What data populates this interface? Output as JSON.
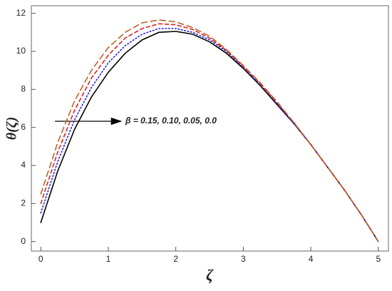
{
  "chart_data": {
    "type": "line",
    "xlabel": "ζ",
    "ylabel": "θ(ζ)",
    "annotation": "β = 0.15, 0.10, 0.05, 0.0",
    "x": [
      0,
      0.25,
      0.5,
      0.75,
      1,
      1.25,
      1.5,
      1.75,
      2,
      2.25,
      2.5,
      2.75,
      3,
      3.25,
      3.5,
      3.75,
      4,
      4.25,
      4.5,
      4.75,
      5
    ],
    "series": [
      {
        "color": "#000000",
        "dash": "solid",
        "values": [
          1.0,
          3.7,
          5.9,
          7.6,
          8.9,
          9.9,
          10.6,
          11.0,
          11.05,
          10.9,
          10.5,
          9.9,
          9.1,
          8.2,
          7.2,
          6.2,
          5.1,
          3.9,
          2.7,
          1.4,
          0
        ]
      },
      {
        "color": "#2020e0",
        "dash": "dotted",
        "values": [
          1.5,
          4.2,
          6.4,
          8.1,
          9.4,
          10.3,
          10.9,
          11.2,
          11.2,
          11.0,
          10.6,
          10.0,
          9.15,
          8.25,
          7.25,
          6.2,
          5.1,
          3.9,
          2.7,
          1.4,
          0
        ]
      },
      {
        "color": "#e02020",
        "dash": "dashed",
        "values": [
          2.0,
          4.7,
          6.9,
          8.6,
          9.8,
          10.7,
          11.2,
          11.45,
          11.4,
          11.15,
          10.7,
          10.05,
          9.2,
          8.3,
          7.3,
          6.25,
          5.1,
          3.9,
          2.7,
          1.4,
          0
        ]
      },
      {
        "color": "#b5652a",
        "dash": "longdash",
        "values": [
          2.5,
          5.2,
          7.4,
          9.0,
          10.2,
          11.0,
          11.5,
          11.65,
          11.55,
          11.25,
          10.8,
          10.1,
          9.25,
          8.35,
          7.35,
          6.25,
          5.1,
          3.9,
          2.7,
          1.4,
          0
        ]
      }
    ],
    "xlim": [
      -0.14,
      5.15
    ],
    "ylim": [
      -0.5,
      12.4
    ],
    "xticks": [
      0,
      1,
      2,
      3,
      4,
      5
    ],
    "yticks": [
      0,
      2,
      4,
      6,
      8,
      10,
      12
    ]
  }
}
